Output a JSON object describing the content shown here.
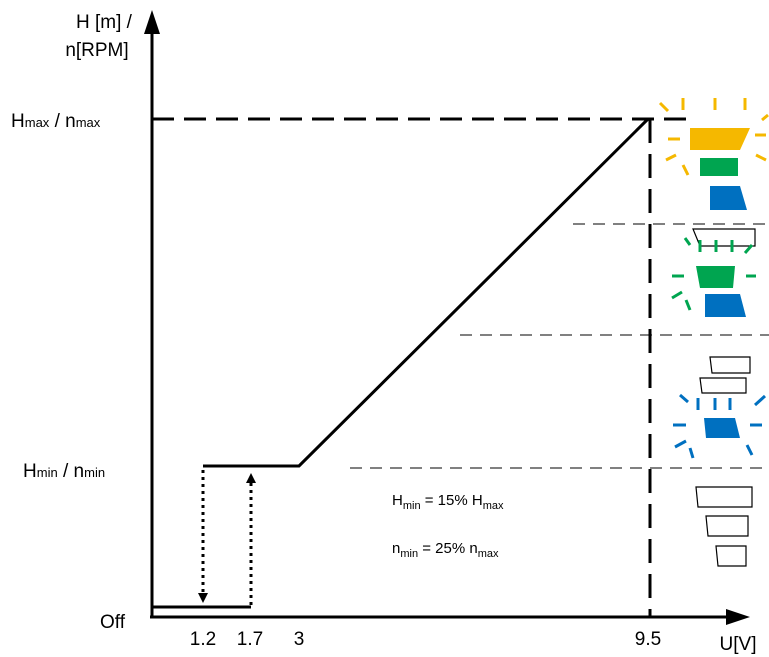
{
  "axes": {
    "y_label_line1": "H [m] /",
    "y_label_line2": "n[RPM]",
    "x_label": "U[V]"
  },
  "y_levels": {
    "max": {
      "main1": "H",
      "sub1": "max",
      "sep": " / ",
      "main2": "n",
      "sub2": "max"
    },
    "min": {
      "main1": "H",
      "sub1": "min",
      "sep": " / ",
      "main2": "n",
      "sub2": "min"
    },
    "off": "Off"
  },
  "x_ticks": [
    "1.2",
    "1.7",
    "3",
    "9.5"
  ],
  "notes": {
    "h_rule": {
      "a": "H",
      "a_sub": "min",
      "mid": " = 15% H",
      "b_sub": "max"
    },
    "n_rule": {
      "a": "n",
      "a_sub": "min",
      "mid": " = 25% n",
      "b_sub": "max"
    }
  },
  "chart_data": {
    "type": "line",
    "xlabel": "U[V]",
    "ylabel": "H [m] / n[RPM]",
    "x_ticks": [
      1.2,
      1.7,
      3,
      9.5
    ],
    "y_ticks": [
      "Off",
      "Hmin / nmin",
      "Hmax / nmax"
    ],
    "series": [
      {
        "points": [
          [
            1.2,
            "Hmin / nmin"
          ],
          [
            3,
            "Hmin / nmin"
          ],
          [
            9.5,
            "Hmax / nmax"
          ]
        ]
      },
      {
        "points": [
          [
            0,
            "Off"
          ],
          [
            1.7,
            "Off"
          ]
        ]
      }
    ],
    "hysteresis": {
      "switch_off_at": 1.2,
      "switch_on_at": 1.7
    }
  },
  "colors": {
    "yellow": "#f5b800",
    "green": "#00a550",
    "blue": "#0070c0",
    "line": "#000000"
  },
  "icons": [
    "pump-stack-max-icon",
    "pump-stack-mid-icon",
    "pump-stack-min-icon",
    "pump-stack-off-icon"
  ]
}
